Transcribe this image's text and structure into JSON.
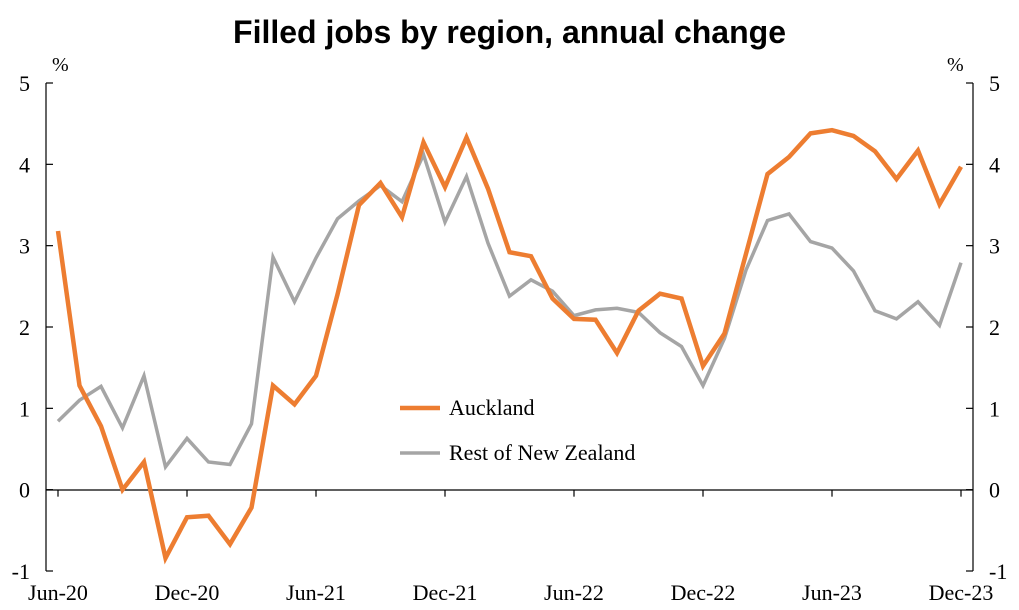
{
  "chart_data": {
    "type": "line",
    "title": "Filled jobs by region, annual change",
    "ylabel_left": "%",
    "ylabel_right": "%",
    "ylim": [
      -1,
      5
    ],
    "yticks": [
      "-1",
      "0",
      "1",
      "2",
      "3",
      "4",
      "5"
    ],
    "x_tick_labels": [
      "Jun-20",
      "Dec-20",
      "Jun-21",
      "Dec-21",
      "Jun-22",
      "Dec-22",
      "Jun-23",
      "Dec-23"
    ],
    "x": [
      "Jun-20",
      "Jul-20",
      "Aug-20",
      "Sep-20",
      "Oct-20",
      "Nov-20",
      "Dec-20",
      "Jan-21",
      "Feb-21",
      "Mar-21",
      "Apr-21",
      "May-21",
      "Jun-21",
      "Jul-21",
      "Aug-21",
      "Sep-21",
      "Oct-21",
      "Nov-21",
      "Dec-21",
      "Jan-22",
      "Feb-22",
      "Mar-22",
      "Apr-22",
      "May-22",
      "Jun-22",
      "Jul-22",
      "Aug-22",
      "Sep-22",
      "Oct-22",
      "Nov-22",
      "Dec-22",
      "Jan-23",
      "Feb-23",
      "Mar-23",
      "Apr-23",
      "May-23",
      "Jun-23",
      "Jul-23",
      "Aug-23",
      "Sep-23",
      "Oct-23",
      "Nov-23",
      "Dec-23"
    ],
    "series": [
      {
        "name": "Auckland",
        "color": "#ED7D31",
        "values": [
          3.18,
          1.28,
          0.78,
          0.0,
          0.34,
          -0.84,
          -0.34,
          -0.32,
          -0.67,
          -0.22,
          1.28,
          1.05,
          1.4,
          2.4,
          3.5,
          3.77,
          3.35,
          4.27,
          3.72,
          4.33,
          3.7,
          2.92,
          2.87,
          2.35,
          2.1,
          2.09,
          1.68,
          2.2,
          2.41,
          2.35,
          1.52,
          1.92,
          2.9,
          3.88,
          4.09,
          4.38,
          4.42,
          4.35,
          4.16,
          3.82,
          4.17,
          3.51,
          3.97
        ]
      },
      {
        "name": "Rest of New Zealand",
        "color": "#A5A5A5",
        "values": [
          0.84,
          1.1,
          1.27,
          0.76,
          1.4,
          0.28,
          0.63,
          0.34,
          0.31,
          0.81,
          2.86,
          2.31,
          2.85,
          3.33,
          3.55,
          3.74,
          3.54,
          4.12,
          3.29,
          3.85,
          3.03,
          2.38,
          2.58,
          2.44,
          2.14,
          2.21,
          2.23,
          2.18,
          1.93,
          1.76,
          1.28,
          1.86,
          2.7,
          3.31,
          3.39,
          3.05,
          2.97,
          2.69,
          2.2,
          2.1,
          2.31,
          2.02,
          2.79
        ]
      }
    ],
    "grid": false,
    "legend_position": "center"
  }
}
